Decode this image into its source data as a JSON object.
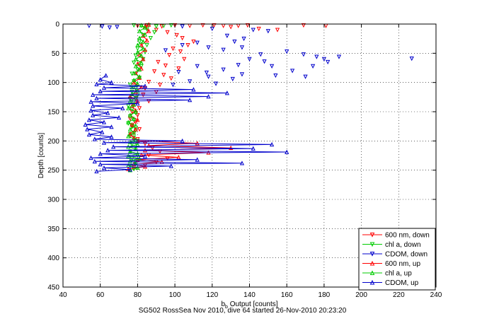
{
  "chart_data": {
    "type": "line",
    "xlabel_main": "b",
    "xlabel_sub": "b",
    "xlabel_rest": " Output [counts]",
    "ylabel": "Depth [counts]",
    "footer": "SG502 RossSea Nov 2010, dive 64 started 26-Nov-2010 20:23:20",
    "xlim": [
      40,
      240
    ],
    "ylim": [
      0,
      450
    ],
    "y_reversed": true,
    "grid": true,
    "grid_style": "dotted",
    "legend_position": "bottom-right",
    "xticks": [
      40,
      60,
      80,
      100,
      120,
      140,
      160,
      180,
      200,
      220,
      240
    ],
    "yticks": [
      0,
      50,
      100,
      150,
      200,
      250,
      300,
      350,
      400,
      450
    ],
    "series": [
      {
        "name": "600 nm, down",
        "color": "#ff0000",
        "marker": "triangle-down",
        "line": false,
        "points": [
          [
            80,
            3
          ],
          [
            85,
            2
          ],
          [
            93,
            4
          ],
          [
            100,
            2
          ],
          [
            108,
            3
          ],
          [
            115,
            2
          ],
          [
            121,
            2
          ],
          [
            126,
            3
          ],
          [
            130,
            5
          ],
          [
            134,
            3
          ],
          [
            139,
            2
          ],
          [
            145,
            8
          ],
          [
            155,
            10
          ],
          [
            169,
            2
          ],
          [
            181,
            3
          ],
          [
            90,
            10
          ],
          [
            96,
            14
          ],
          [
            101,
            19
          ],
          [
            104,
            24
          ],
          [
            110,
            30
          ],
          [
            107,
            36
          ],
          [
            99,
            42
          ],
          [
            103,
            47
          ],
          [
            97,
            53
          ],
          [
            105,
            60
          ],
          [
            91,
            65
          ],
          [
            95,
            71
          ],
          [
            102,
            76
          ],
          [
            89,
            81
          ],
          [
            94,
            87
          ],
          [
            98,
            93
          ],
          [
            86,
            99
          ],
          [
            92,
            104
          ],
          [
            84,
            110
          ],
          [
            90,
            116
          ],
          [
            83,
            121
          ],
          [
            79,
            127
          ],
          [
            86,
            132
          ],
          [
            78,
            138
          ],
          [
            81,
            144
          ],
          [
            77,
            150
          ],
          [
            80,
            156
          ],
          [
            76,
            162
          ],
          [
            79,
            168
          ],
          [
            77,
            174
          ],
          [
            81,
            180
          ],
          [
            78,
            186
          ],
          [
            76,
            192
          ],
          [
            80,
            197
          ],
          [
            84,
            205
          ],
          [
            88,
            212
          ],
          [
            92,
            218
          ],
          [
            86,
            224
          ],
          [
            96,
            230
          ],
          [
            90,
            236
          ],
          [
            84,
            242
          ],
          [
            78,
            248
          ]
        ]
      },
      {
        "name": "chl a, down",
        "color": "#00cc00",
        "marker": "triangle-down",
        "line": false,
        "points": [
          [
            78,
            2
          ],
          [
            82,
            3
          ],
          [
            86,
            2
          ],
          [
            90,
            4
          ],
          [
            94,
            3
          ],
          [
            98,
            2
          ],
          [
            85,
            9
          ],
          [
            89,
            14
          ],
          [
            83,
            19
          ],
          [
            87,
            24
          ],
          [
            81,
            30
          ],
          [
            85,
            36
          ],
          [
            80,
            42
          ],
          [
            84,
            48
          ],
          [
            79,
            54
          ],
          [
            83,
            60
          ],
          [
            78,
            66
          ],
          [
            82,
            72
          ],
          [
            80,
            78
          ],
          [
            77,
            85
          ],
          [
            81,
            92
          ],
          [
            78,
            98
          ],
          [
            76,
            104
          ],
          [
            79,
            110
          ],
          [
            77,
            116
          ],
          [
            80,
            122
          ],
          [
            76,
            128
          ],
          [
            78,
            134
          ],
          [
            75,
            140
          ],
          [
            77,
            146
          ],
          [
            79,
            152
          ],
          [
            76,
            158
          ],
          [
            78,
            164
          ],
          [
            75,
            170
          ],
          [
            77,
            176
          ],
          [
            79,
            182
          ],
          [
            76,
            188
          ],
          [
            78,
            194
          ],
          [
            80,
            200
          ],
          [
            77,
            206
          ],
          [
            79,
            212
          ],
          [
            76,
            218
          ],
          [
            80,
            224
          ],
          [
            77,
            230
          ],
          [
            79,
            236
          ],
          [
            76,
            242
          ],
          [
            78,
            248
          ]
        ]
      },
      {
        "name": "CDOM, down",
        "color": "#0000cc",
        "marker": "triangle-down",
        "line": false,
        "points": [
          [
            54,
            3
          ],
          [
            61,
            4
          ],
          [
            65,
            6
          ],
          [
            69,
            5
          ],
          [
            104,
            4
          ],
          [
            120,
            8
          ],
          [
            142,
            10
          ],
          [
            150,
            12
          ],
          [
            128,
            20
          ],
          [
            137,
            25
          ],
          [
            132,
            30
          ],
          [
            112,
            32
          ],
          [
            104,
            36
          ],
          [
            118,
            40
          ],
          [
            126,
            44
          ],
          [
            95,
            45
          ],
          [
            136,
            40
          ],
          [
            146,
            52
          ],
          [
            160,
            47
          ],
          [
            169,
            52
          ],
          [
            176,
            56
          ],
          [
            180,
            60
          ],
          [
            188,
            56
          ],
          [
            182,
            65
          ],
          [
            227,
            59
          ],
          [
            140,
            60
          ],
          [
            148,
            64
          ],
          [
            134,
            70
          ],
          [
            152,
            72
          ],
          [
            112,
            72
          ],
          [
            126,
            78
          ],
          [
            117,
            83
          ],
          [
            136,
            86
          ],
          [
            102,
            82
          ],
          [
            118,
            90
          ],
          [
            131,
            94
          ],
          [
            108,
            98
          ],
          [
            122,
            102
          ],
          [
            99,
            104
          ],
          [
            174,
            72
          ],
          [
            163,
            80
          ],
          [
            170,
            90
          ],
          [
            154,
            88
          ]
        ]
      },
      {
        "name": "600 nm, up",
        "color": "#ff0000",
        "marker": "triangle-up",
        "line": true,
        "points": [
          [
            75,
            248
          ],
          [
            84,
            244
          ],
          [
            78,
            240
          ],
          [
            93,
            236
          ],
          [
            80,
            232
          ],
          [
            102,
            228
          ],
          [
            82,
            224
          ],
          [
            118,
            220
          ],
          [
            84,
            216
          ],
          [
            130,
            212
          ],
          [
            86,
            208
          ],
          [
            112,
            204
          ],
          [
            80,
            200
          ],
          [
            78,
            195
          ],
          [
            76,
            188
          ],
          [
            79,
            180
          ],
          [
            77,
            172
          ],
          [
            80,
            164
          ],
          [
            76,
            156
          ],
          [
            79,
            148
          ],
          [
            77,
            140
          ],
          [
            80,
            132
          ],
          [
            76,
            124
          ],
          [
            79,
            116
          ],
          [
            82,
            108
          ],
          [
            78,
            100
          ],
          [
            81,
            92
          ],
          [
            79,
            84
          ],
          [
            82,
            76
          ],
          [
            80,
            68
          ],
          [
            83,
            60
          ],
          [
            81,
            52
          ],
          [
            84,
            44
          ],
          [
            82,
            36
          ],
          [
            85,
            28
          ],
          [
            83,
            20
          ],
          [
            86,
            12
          ],
          [
            84,
            4
          ],
          [
            86,
            1
          ]
        ]
      },
      {
        "name": "chl a, up",
        "color": "#00cc00",
        "marker": "triangle-up",
        "line": true,
        "points": [
          [
            76,
            250
          ],
          [
            80,
            246
          ],
          [
            75,
            242
          ],
          [
            79,
            238
          ],
          [
            76,
            234
          ],
          [
            81,
            230
          ],
          [
            75,
            226
          ],
          [
            80,
            222
          ],
          [
            76,
            218
          ],
          [
            79,
            214
          ],
          [
            75,
            210
          ],
          [
            80,
            206
          ],
          [
            76,
            202
          ],
          [
            79,
            198
          ],
          [
            75,
            192
          ],
          [
            78,
            186
          ],
          [
            76,
            180
          ],
          [
            79,
            174
          ],
          [
            75,
            168
          ],
          [
            78,
            162
          ],
          [
            76,
            156
          ],
          [
            79,
            150
          ],
          [
            75,
            144
          ],
          [
            78,
            138
          ],
          [
            76,
            132
          ],
          [
            79,
            126
          ],
          [
            77,
            120
          ],
          [
            80,
            114
          ],
          [
            77,
            108
          ],
          [
            80,
            102
          ],
          [
            78,
            96
          ],
          [
            81,
            90
          ],
          [
            78,
            84
          ],
          [
            81,
            78
          ],
          [
            79,
            72
          ],
          [
            82,
            66
          ],
          [
            79,
            60
          ],
          [
            82,
            54
          ],
          [
            80,
            48
          ],
          [
            83,
            42
          ],
          [
            80,
            36
          ],
          [
            83,
            30
          ],
          [
            81,
            24
          ],
          [
            84,
            18
          ],
          [
            81,
            12
          ],
          [
            84,
            6
          ],
          [
            82,
            2
          ]
        ]
      },
      {
        "name": "CDOM, up",
        "color": "#0000cc",
        "marker": "triangle-up",
        "line": true,
        "points": [
          [
            58,
            252
          ],
          [
            76,
            249
          ],
          [
            62,
            246
          ],
          [
            98,
            243
          ],
          [
            60,
            240
          ],
          [
            136,
            238
          ],
          [
            57,
            235
          ],
          [
            112,
            232
          ],
          [
            55,
            229
          ],
          [
            84,
            226
          ],
          [
            60,
            222
          ],
          [
            160,
            219
          ],
          [
            64,
            216
          ],
          [
            142,
            213
          ],
          [
            67,
            210
          ],
          [
            152,
            206
          ],
          [
            62,
            203
          ],
          [
            104,
            200
          ],
          [
            57,
            197
          ],
          [
            66,
            193
          ],
          [
            54,
            189
          ],
          [
            61,
            185
          ],
          [
            53,
            180
          ],
          [
            66,
            176
          ],
          [
            52,
            172
          ],
          [
            62,
            168
          ],
          [
            54,
            164
          ],
          [
            70,
            160
          ],
          [
            56,
            156
          ],
          [
            64,
            152
          ],
          [
            55,
            148
          ],
          [
            72,
            144
          ],
          [
            56,
            140
          ],
          [
            80,
            136
          ],
          [
            55,
            133
          ],
          [
            108,
            130
          ],
          [
            58,
            127
          ],
          [
            118,
            124
          ],
          [
            56,
            121
          ],
          [
            128,
            118
          ],
          [
            60,
            115
          ],
          [
            110,
            112
          ],
          [
            62,
            109
          ],
          [
            84,
            106
          ],
          [
            58,
            103
          ],
          [
            66,
            100
          ],
          [
            60,
            95
          ],
          [
            63,
            88
          ]
        ]
      }
    ]
  }
}
